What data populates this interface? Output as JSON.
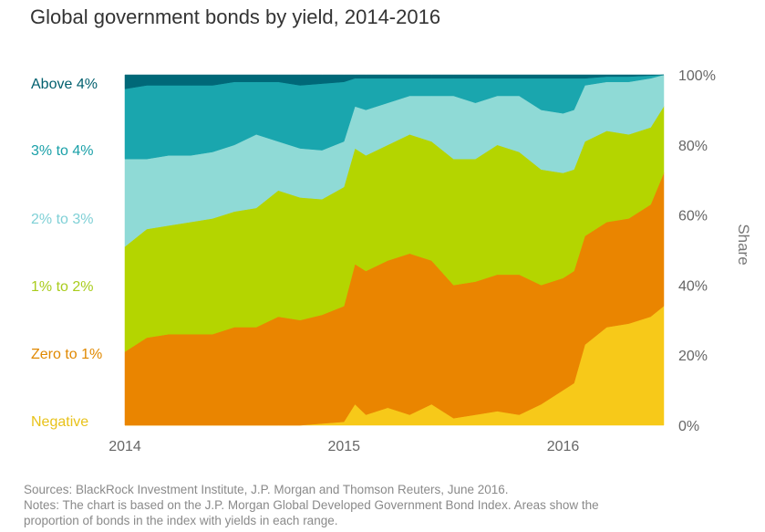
{
  "chart_data": {
    "type": "area",
    "title": "Global government bonds by yield, 2014-2016",
    "ylabel": "Share",
    "xlabel": "",
    "stacked": true,
    "ylim": [
      0,
      100
    ],
    "y_tick_labels": [
      "0%",
      "20%",
      "40%",
      "60%",
      "80%",
      "100%"
    ],
    "y_ticks": [
      0,
      20,
      40,
      60,
      80,
      100
    ],
    "x_tick_labels": [
      "2014",
      "2015",
      "2016"
    ],
    "x_ticks": [
      2014,
      2015,
      2016
    ],
    "xlim": [
      2014,
      2016.46
    ],
    "legend_placement": "left, inline labels",
    "x": [
      2014,
      2014.1,
      2014.2,
      2014.3,
      2014.4,
      2014.5,
      2014.6,
      2014.7,
      2014.8,
      2014.9,
      2015,
      2015.05,
      2015.1,
      2015.2,
      2015.3,
      2015.4,
      2015.5,
      2015.6,
      2015.7,
      2015.8,
      2015.9,
      2016,
      2016.05,
      2016.1,
      2016.2,
      2016.3,
      2016.4,
      2016.46
    ],
    "series": [
      {
        "name": "Negative",
        "color": "#f7c919",
        "values": [
          0,
          0,
          0,
          0,
          0,
          0,
          0,
          0,
          0,
          0.5,
          1,
          6,
          3,
          5,
          3,
          6,
          2,
          3,
          4,
          3,
          6,
          10,
          12,
          23,
          28,
          29,
          31,
          34
        ]
      },
      {
        "name": "Zero to 1%",
        "color": "#ea8500",
        "values": [
          21,
          25,
          26,
          26,
          26,
          28,
          28,
          31,
          30,
          31,
          33,
          40,
          41,
          42,
          46,
          41,
          38,
          38,
          39,
          40,
          34,
          32,
          32,
          31,
          30,
          30,
          32,
          38
        ]
      },
      {
        "name": "1% to 2%",
        "color": "#b4d500",
        "values": [
          30,
          31,
          31,
          32,
          33,
          33,
          34,
          36,
          35,
          33,
          34,
          33,
          33,
          33,
          34,
          34,
          36,
          35,
          37,
          35,
          33,
          30,
          29,
          27,
          26,
          24,
          22,
          19
        ]
      },
      {
        "name": "2% to 3%",
        "color": "#8fdad6",
        "values": [
          25,
          20,
          20,
          19,
          19,
          19,
          21,
          14,
          14,
          14,
          13,
          12,
          13,
          12,
          11,
          13,
          18,
          16,
          14,
          16,
          17,
          17,
          17,
          16,
          14,
          15,
          14,
          9
        ]
      },
      {
        "name": "3% to 4%",
        "color": "#1aa6ae",
        "values": [
          20,
          21,
          20,
          20,
          19,
          18,
          15,
          17,
          18,
          19,
          17,
          8,
          9,
          7,
          5,
          5,
          5,
          7,
          5,
          5,
          9,
          10,
          9,
          2,
          1.5,
          1.5,
          0.8,
          0
        ]
      },
      {
        "name": "Above 4%",
        "color": "#006878",
        "values": [
          4,
          3,
          3,
          3,
          3,
          2,
          2,
          2,
          3,
          2.5,
          2,
          1,
          1,
          1,
          1,
          1,
          1,
          1,
          1,
          1,
          1,
          1,
          1,
          1,
          0.5,
          0.5,
          0.2,
          0
        ]
      }
    ]
  },
  "footer": {
    "sources": "Sources: BlackRock Investment Institute, J.P. Morgan and Thomson Reuters, June 2016.",
    "notes_line1": "Notes: The chart is based on the J.P. Morgan Global Developed Government Bond Index. Areas show the",
    "notes_line2": "proportion of bonds in the index with yields in each range."
  }
}
